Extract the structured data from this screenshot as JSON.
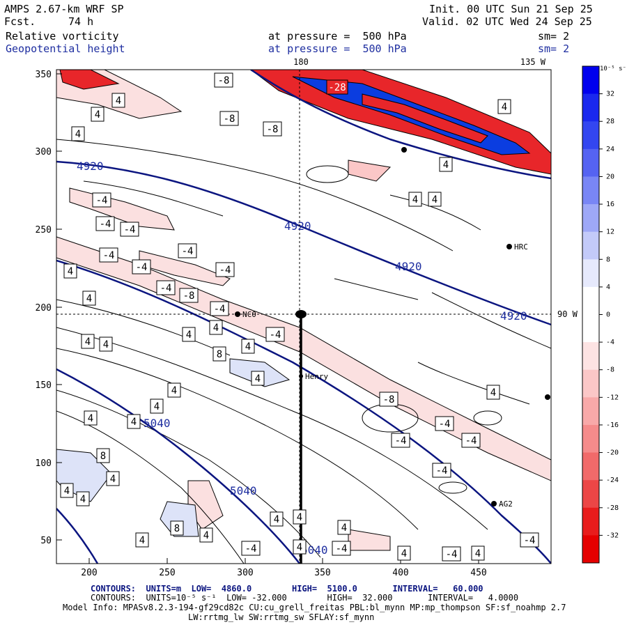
{
  "header": {
    "model": "AMPS 2.67-km WRF SP",
    "fcst_label": "Fcst.",
    "fcst_value": "74 h",
    "init": "Init. 00 UTC Sun 21 Sep 25",
    "valid": "Valid. 02 UTC Wed 24 Sep 25",
    "field1": "Relative vorticity",
    "field2": "Geopotential height",
    "pressure1": "at pressure =  500 hPa",
    "pressure2": "at pressure =  500 hPa",
    "sm1": "sm= 2",
    "sm2": "sm= 2"
  },
  "map": {
    "meridian_top": "180",
    "meridian_135": "135 W",
    "meridian_90": "90 W",
    "x_ticks": [
      "200",
      "250",
      "300",
      "350",
      "400",
      "450"
    ],
    "y_ticks": [
      "350",
      "300",
      "250",
      "200",
      "150",
      "100",
      "50"
    ],
    "stations": [
      {
        "label": "HRC"
      },
      {
        "label": "NC0"
      },
      {
        "label": "Henry"
      },
      {
        "label": "AG2"
      }
    ],
    "height_labels": [
      "4920",
      "4920",
      "4920",
      "4920",
      "5040",
      "5040",
      "5040"
    ],
    "vort_labels": [
      "4",
      "4",
      "4",
      "4",
      "4",
      "4",
      "4",
      "4",
      "4",
      "4",
      "4",
      "4",
      "4",
      "4",
      "4",
      "4",
      "4",
      "4",
      "4",
      "4",
      "4",
      "4",
      "4",
      "4",
      "4",
      "4",
      "4",
      "4",
      "4",
      "4",
      "4",
      "-4",
      "-4",
      "-4",
      "-4",
      "-4",
      "-4",
      "-4",
      "-4",
      "-4",
      "-4",
      "-4",
      "-4",
      "-4",
      "-4",
      "-4",
      "-4",
      "-4",
      "-4",
      "-8",
      "-8",
      "-8",
      "-8",
      "-8",
      "8",
      "8",
      "8",
      "-28"
    ],
    "colors": {
      "height_contour": "#0b1580",
      "negative_vorticity": "#e8262a",
      "positive_vorticity": "#0b3de0",
      "weak_negative": "#fbe0e0",
      "weak_positive": "#dde3f8"
    }
  },
  "colorbar": {
    "unit": "10⁻⁵ s⁻¹",
    "labels": [
      "32",
      "28",
      "24",
      "20",
      "16",
      "12",
      "8",
      "4",
      "0",
      "-4",
      "-8",
      "-12",
      "-16",
      "-20",
      "-24",
      "-28",
      "-32"
    ],
    "colors": [
      "#0000ee",
      "#1a28ee",
      "#3346f0",
      "#5563f2",
      "#7986f5",
      "#9ea8f7",
      "#c3caf9",
      "#e6e9fc",
      "#ffffff",
      "#ffffff",
      "#fde3e3",
      "#fbc7c7",
      "#f8a9a9",
      "#f58b8b",
      "#f16a6a",
      "#ec4646",
      "#e81c1c",
      "#e50000"
    ]
  },
  "footer": {
    "contours_height": "CONTOURS:  UNITS=m  LOW=  4860.0        HIGH=  5100.0       INTERVAL=   60.000",
    "contours_vort": "CONTOURS:  UNITS=10⁻⁵ s⁻¹  LOW= -32.000        HIGH=  32.000       INTERVAL=   4.0000",
    "model_info": "Model Info: MPASv8.2.3-194-gf29cd82c CU:cu_grell_freitas PBL:bl_mynn MP:mp_thompson SF:sf_noahmp 2.7",
    "model_info2": "LW:rrtmg_lw SW:rrtmg_sw SFLAY:sf_mynn"
  }
}
